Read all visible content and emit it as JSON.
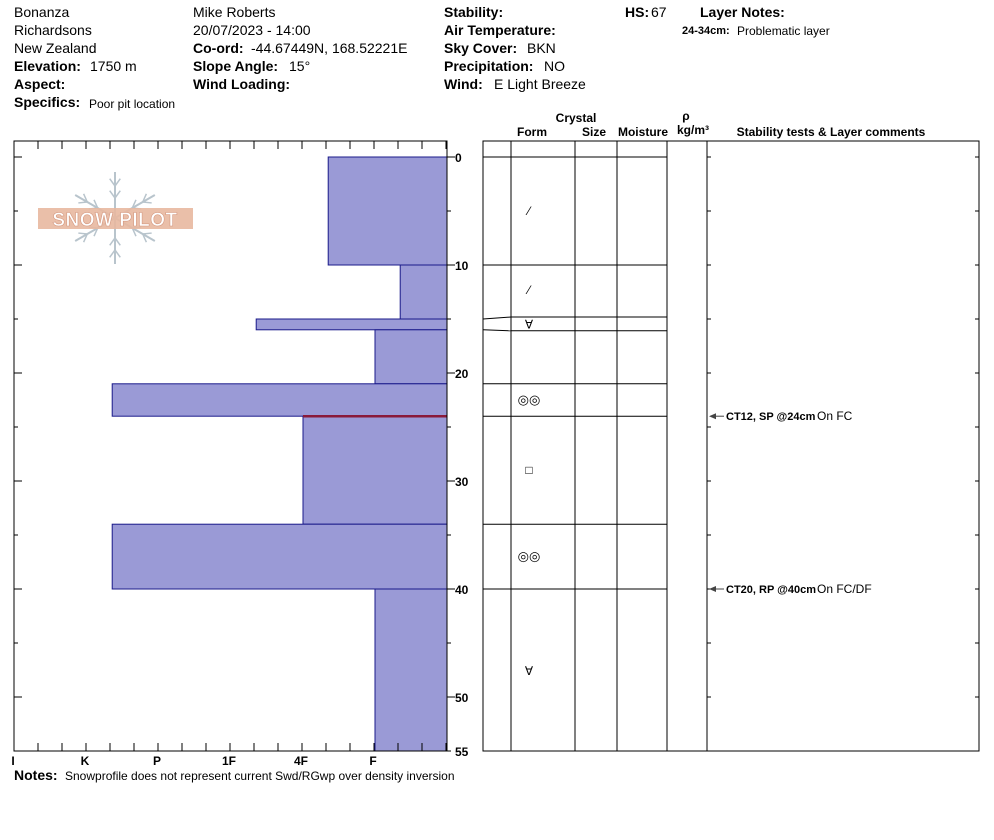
{
  "header": {
    "location": "Bonanza",
    "range": "Richardsons",
    "country": "New Zealand",
    "elevation_label": "Elevation:",
    "elevation_value": "1750 m",
    "aspect_label": "Aspect:",
    "specifics_label": "Specifics:",
    "specifics_value": "Poor pit location",
    "observer": "Mike Roberts",
    "datetime": "20/07/2023 - 14:00",
    "coord_label": "Co-ord:",
    "coord_value": "-44.67449N, 168.52221E",
    "slope_label": "Slope Angle:",
    "slope_value": "15°",
    "wind_loading_label": "Wind Loading:",
    "stability_label": "Stability:",
    "air_temp_label": "Air Temperature:",
    "sky_label": "Sky Cover:",
    "sky_value": "BKN",
    "precip_label": "Precipitation:",
    "precip_value": "NO",
    "wind_label": "Wind:",
    "wind_value": "E Light Breeze",
    "hs_label": "HS:",
    "hs_value": "67",
    "layer_notes_label": "Layer Notes:",
    "layer_notes_range": "24-34cm:",
    "layer_notes_text": "Problematic layer"
  },
  "columns": {
    "crystal": "Crystal",
    "form": "Form",
    "size": "Size",
    "moisture": "Moisture",
    "rho": "ρ",
    "density_unit": "kg/m³",
    "stability": "Stability tests & Layer comments"
  },
  "logo_text": "SNOW PILOT",
  "notes_label": "Notes:",
  "notes_text": "Snowprofile does not represent current Swd/RGwp over density inversion",
  "depth_axis": {
    "min": 0,
    "max": 55,
    "labels": [
      "0",
      "10",
      "20",
      "30",
      "40",
      "50",
      "55"
    ],
    "label_values": [
      0,
      10,
      20,
      30,
      40,
      50,
      55
    ]
  },
  "hardness_axis": {
    "labels": [
      "I",
      "K",
      "P",
      "1F",
      "4F",
      "F"
    ],
    "values": [
      6,
      5,
      4,
      3,
      2,
      1
    ]
  },
  "layers": [
    {
      "top": 0,
      "bottom": 10,
      "hardness": 1.65,
      "form": "faceted-mixed"
    },
    {
      "top": 10,
      "bottom": 15,
      "hardness": 0.65,
      "form": "faceted-mixed"
    },
    {
      "top": 15,
      "bottom": 16,
      "hardness": 2.65,
      "form": "depth-hoar"
    },
    {
      "top": 16,
      "bottom": 21,
      "hardness": 1.0,
      "form": ""
    },
    {
      "top": 21,
      "bottom": 24,
      "hardness": 4.65,
      "form": "melt-forms"
    },
    {
      "top": 24,
      "bottom": 34,
      "hardness": 2.0,
      "form": "faceted"
    },
    {
      "top": 34,
      "bottom": 40,
      "hardness": 4.65,
      "form": "melt-forms"
    },
    {
      "top": 40,
      "bottom": 55,
      "hardness": 1.0,
      "form": "depth-hoar"
    }
  ],
  "weak_layer_depth": 24,
  "form_symbols": {
    "faceted-mixed": "⁄",
    "depth-hoar": "∀",
    "melt-forms": "◎◎",
    "faceted": "□"
  },
  "stability_tests": [
    {
      "depth": 24,
      "test": "CT12, SP @24cm",
      "comment": "On FC"
    },
    {
      "depth": 40,
      "test": "CT20, RP @40cm",
      "comment": "On FC/DF"
    }
  ],
  "colors": {
    "layer_fill": "#9a9ad6",
    "layer_stroke": "#1a1a8a",
    "weak_line": "#8a1a3a",
    "logo": "#e8b8a0",
    "logo_flake": "#b8c4cc"
  }
}
